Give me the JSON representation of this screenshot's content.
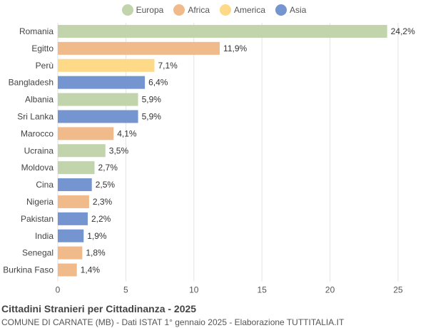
{
  "legend": [
    {
      "name": "Europa",
      "color": "#c1d4ac"
    },
    {
      "name": "Africa",
      "color": "#f0ba8a"
    },
    {
      "name": "America",
      "color": "#fdd988"
    },
    {
      "name": "Asia",
      "color": "#7595d0"
    }
  ],
  "chart_data": {
    "type": "bar",
    "orientation": "horizontal",
    "categories": [
      "Romania",
      "Egitto",
      "Perù",
      "Bangladesh",
      "Albania",
      "Sri Lanka",
      "Marocco",
      "Ucraina",
      "Moldova",
      "Cina",
      "Nigeria",
      "Pakistan",
      "India",
      "Senegal",
      "Burkina Faso"
    ],
    "values": [
      24.2,
      11.9,
      7.1,
      6.4,
      5.9,
      5.9,
      4.1,
      3.5,
      2.7,
      2.5,
      2.3,
      2.2,
      1.9,
      1.8,
      1.4
    ],
    "value_labels": [
      "24,2%",
      "11,9%",
      "7,1%",
      "6,4%",
      "5,9%",
      "5,9%",
      "4,1%",
      "3,5%",
      "2,7%",
      "2,5%",
      "2,3%",
      "2,2%",
      "1,9%",
      "1,8%",
      "1,4%"
    ],
    "groups": [
      "Europa",
      "Africa",
      "America",
      "Asia",
      "Europa",
      "Asia",
      "Africa",
      "Europa",
      "Europa",
      "Asia",
      "Africa",
      "Asia",
      "Asia",
      "Africa",
      "Africa"
    ],
    "xlim": [
      0,
      25
    ],
    "xticks": [
      0,
      5,
      10,
      15,
      20,
      25
    ],
    "grid": true,
    "legend_position": "top-center"
  },
  "footer": {
    "title": "Cittadini Stranieri per Cittadinanza - 2025",
    "subtitle": "COMUNE DI CARNATE (MB) - Dati ISTAT 1° gennaio 2025 - Elaborazione TUTTITALIA.IT"
  }
}
